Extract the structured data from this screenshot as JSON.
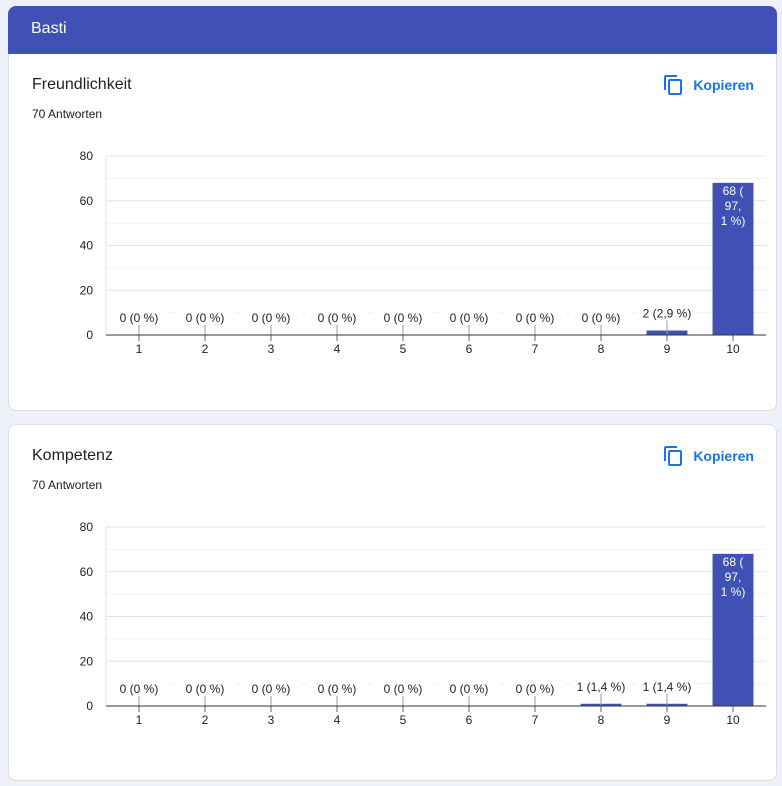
{
  "section": {
    "title": "Basti"
  },
  "copy_label": "Kopieren",
  "accent": "#3f51b5",
  "link_color": "#1a73e8",
  "questions": [
    {
      "title": "Freundlichkeit",
      "responses": "70 Antworten"
    },
    {
      "title": "Kompetenz",
      "responses": "70 Antworten"
    }
  ],
  "chart_data": [
    {
      "type": "bar",
      "title": "Freundlichkeit",
      "categories": [
        "1",
        "2",
        "3",
        "4",
        "5",
        "6",
        "7",
        "8",
        "9",
        "10"
      ],
      "values": [
        0,
        0,
        0,
        0,
        0,
        0,
        0,
        0,
        2,
        68
      ],
      "labels": [
        "0 (0 %)",
        "0 (0 %)",
        "0 (0 %)",
        "0 (0 %)",
        "0 (0 %)",
        "0 (0 %)",
        "0 (0 %)",
        "0 (0 %)",
        "2 (2,9 %)",
        "68 (97,1 %)"
      ],
      "yticks": [
        0,
        20,
        40,
        60,
        80
      ],
      "ylim": [
        0,
        80
      ],
      "grid": true,
      "color": "#3f51b5"
    },
    {
      "type": "bar",
      "title": "Kompetenz",
      "categories": [
        "1",
        "2",
        "3",
        "4",
        "5",
        "6",
        "7",
        "8",
        "9",
        "10"
      ],
      "values": [
        0,
        0,
        0,
        0,
        0,
        0,
        0,
        1,
        1,
        68
      ],
      "labels": [
        "0 (0 %)",
        "0 (0 %)",
        "0 (0 %)",
        "0 (0 %)",
        "0 (0 %)",
        "0 (0 %)",
        "0 (0 %)",
        "1 (1,4 %)",
        "1 (1,4 %)",
        "68 (97,1 %)"
      ],
      "yticks": [
        0,
        20,
        40,
        60,
        80
      ],
      "ylim": [
        0,
        80
      ],
      "grid": true,
      "color": "#3f51b5"
    }
  ]
}
